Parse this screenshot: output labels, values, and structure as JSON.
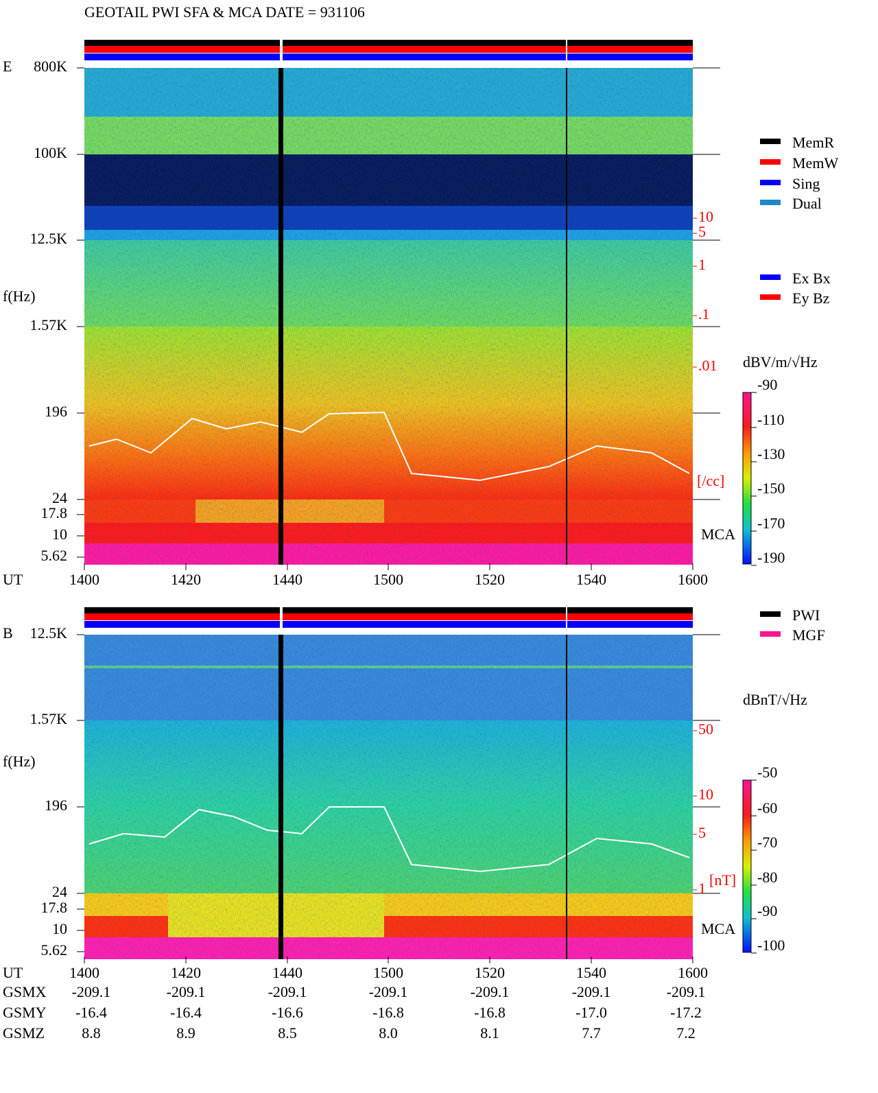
{
  "header": {
    "title": "GEOTAIL  PWI SFA & MCA   DATE = 931106"
  },
  "panels": [
    {
      "label": "E",
      "y_axis_label": "f(Hz)",
      "freq_ticks": [
        "800K",
        "100K",
        "12.5K",
        "1.57K",
        "196",
        "24",
        "17.8",
        "10",
        "5.62"
      ],
      "mca_label": "MCA",
      "density_ticks": [
        "10",
        "5",
        "1",
        ".1",
        ".01"
      ],
      "density_unit": "[/cc]",
      "colorbar_unit": "dBV/m/√Hz",
      "colorbar_ticks": [
        "-90",
        "-110",
        "-130",
        "-150",
        "-170",
        "-190"
      ]
    },
    {
      "label": "B",
      "y_axis_label": "f(Hz)",
      "freq_ticks": [
        "12.5K",
        "1.57K",
        "196",
        "24",
        "17.8",
        "10",
        "5.62"
      ],
      "mca_label": "MCA",
      "density_ticks": [
        "50",
        "10",
        "5",
        "1"
      ],
      "density_unit": "[nT]",
      "colorbar_unit": "dBnT/√Hz",
      "colorbar_ticks": [
        "-50",
        "-60",
        "-70",
        "-80",
        "-90",
        "-100"
      ]
    }
  ],
  "time_axis": {
    "label": "UT",
    "ticks": [
      "1400",
      "1420",
      "1440",
      "1500",
      "1520",
      "1540",
      "1600"
    ]
  },
  "legend_mode": [
    {
      "label": "MemR",
      "color": "#000000"
    },
    {
      "label": "MemW",
      "color": "#ff0000"
    },
    {
      "label": "Sing",
      "color": "#0000ff"
    },
    {
      "label": "Dual",
      "color": "#1e88c8"
    }
  ],
  "legend_component": [
    {
      "label": "Ex Bx",
      "color": "#0000ff"
    },
    {
      "label": "Ey Bz",
      "color": "#ff0000"
    }
  ],
  "legend_instrument": [
    {
      "label": "PWI",
      "color": "#000000"
    },
    {
      "label": "MGF",
      "color": "#ff1493"
    }
  ],
  "orbit": {
    "rows": [
      {
        "label": "GSMX",
        "values": [
          "-209.1",
          "-209.1",
          "-209.1",
          "-209.1",
          "-209.1",
          "-209.1",
          "-209.1"
        ]
      },
      {
        "label": "GSMY",
        "values": [
          "-16.4",
          "-16.4",
          "-16.6",
          "-16.8",
          "-16.8",
          "-17.0",
          "-17.2"
        ]
      },
      {
        "label": "GSMZ",
        "values": [
          "8.8",
          "8.9",
          "8.5",
          "8.0",
          "8.1",
          "7.7",
          "7.2"
        ]
      }
    ]
  }
}
